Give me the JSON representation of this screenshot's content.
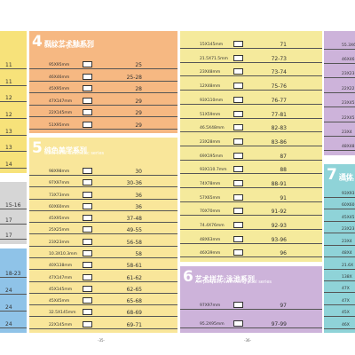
{
  "sections": [
    {
      "rows": [
        {
          "pages": "11"
        },
        {
          "pages": "11"
        },
        {
          "pages": "12"
        },
        {
          "pages": "12"
        },
        {
          "pages": "13"
        },
        {
          "pages": "13"
        },
        {
          "pages": "14"
        }
      ]
    },
    {
      "rows": [
        {
          "pages": "15-16"
        },
        {
          "pages": "17"
        },
        {
          "pages": "17"
        }
      ]
    },
    {
      "rows": [
        {
          "pages": "18-23"
        },
        {
          "pages": "24"
        },
        {
          "pages": "24"
        },
        {
          "pages": "24"
        }
      ]
    },
    {
      "number": "4",
      "title_cn": "裂纹艺术釉系列",
      "title_en": "Crack art glaze series",
      "rows": [
        {
          "size": "95X95mm",
          "pages": "25"
        },
        {
          "size": "46X46mm",
          "pages": "25-28"
        },
        {
          "size": "45X95mm",
          "pages": "28"
        },
        {
          "size": "47X147mm",
          "pages": "29"
        },
        {
          "size": "22X145mm",
          "pages": "29"
        },
        {
          "size": "51X95mm",
          "pages": "29"
        }
      ]
    },
    {
      "number": "5",
      "title_cn": "纯色美学系列",
      "title_en": "Solid color aesthetic series",
      "rows": [
        {
          "size": "98X98mm",
          "pages": "30"
        },
        {
          "size": "97X97mm",
          "pages": "30-36"
        },
        {
          "size": "73X73mm",
          "pages": "36"
        },
        {
          "size": "60X60mm",
          "pages": "36"
        },
        {
          "size": "45X95mm",
          "pages": "37-48"
        },
        {
          "size": "25X25mm",
          "pages": "49-55"
        },
        {
          "size": "23X23mm",
          "pages": "56-58"
        },
        {
          "size": "10.3X10.3mm",
          "pages": "58"
        },
        {
          "size": "40X138mm",
          "pages": "58-61"
        },
        {
          "size": "47X147mm",
          "pages": "61-62"
        },
        {
          "size": "45X145mm",
          "pages": "62-65"
        },
        {
          "size": "45X45mm",
          "pages": "65-68"
        },
        {
          "size": "32.5X145mm",
          "pages": "68-69"
        },
        {
          "size": "22X145mm",
          "pages": "69-71"
        }
      ]
    },
    {
      "rows": [
        {
          "size": "15X145mm",
          "pages": "71"
        },
        {
          "size": "21.5X71.5mm",
          "pages": "72-73"
        },
        {
          "size": "23X48mm",
          "pages": "73-74"
        },
        {
          "size": "12X48mm",
          "pages": "75-76"
        },
        {
          "size": "93X110mm",
          "pages": "76-77"
        },
        {
          "size": "51X59mm",
          "pages": "77-81"
        },
        {
          "size": "46.5X48mm",
          "pages": "82-83"
        },
        {
          "size": "23X28mm",
          "pages": "83-86"
        },
        {
          "size": "69X195mm",
          "pages": "87"
        },
        {
          "size": "93X110.7mm",
          "pages": "88"
        },
        {
          "size": "74X78mm",
          "pages": "88-91"
        },
        {
          "size": "57X65mm",
          "pages": "91"
        },
        {
          "size": "70X70mm",
          "pages": "91-92"
        },
        {
          "size": "74.4X76mm",
          "pages": "92-93"
        },
        {
          "size": "48X63mm",
          "pages": "93-96"
        },
        {
          "size": "46X39mm",
          "pages": "96"
        }
      ]
    },
    {
      "number": "6",
      "title_cn": "艺术拼花·泳池系列",
      "title_en": "Art parquet, swimming pool series",
      "rows": [
        {
          "size": "97X97mm",
          "pages": "97"
        },
        {
          "size": "95.2X95mm",
          "pages": "97-99"
        }
      ]
    },
    {
      "rows": [
        {
          "size": "55.3X6"
        },
        {
          "size": "46X46"
        },
        {
          "size": "23X23"
        },
        {
          "size": "22X22"
        },
        {
          "size": "23X45"
        },
        {
          "size": "22X45"
        },
        {
          "size": "23X4"
        },
        {
          "size": "48X48"
        }
      ]
    },
    {
      "number": "7",
      "title_cn": "通体",
      "title_en": "Unglaz",
      "rows": [
        {
          "size": "93X93"
        },
        {
          "size": "60X60"
        },
        {
          "size": "45X45"
        },
        {
          "size": "23X23"
        },
        {
          "size": "23X4"
        },
        {
          "size": "48X4"
        },
        {
          "size": "21.6X"
        },
        {
          "size": "138X"
        },
        {
          "size": "47X"
        },
        {
          "size": "47X"
        },
        {
          "size": "45X"
        },
        {
          "size": "46X"
        }
      ]
    }
  ],
  "folios": [
    "-35-",
    "-36-"
  ]
}
